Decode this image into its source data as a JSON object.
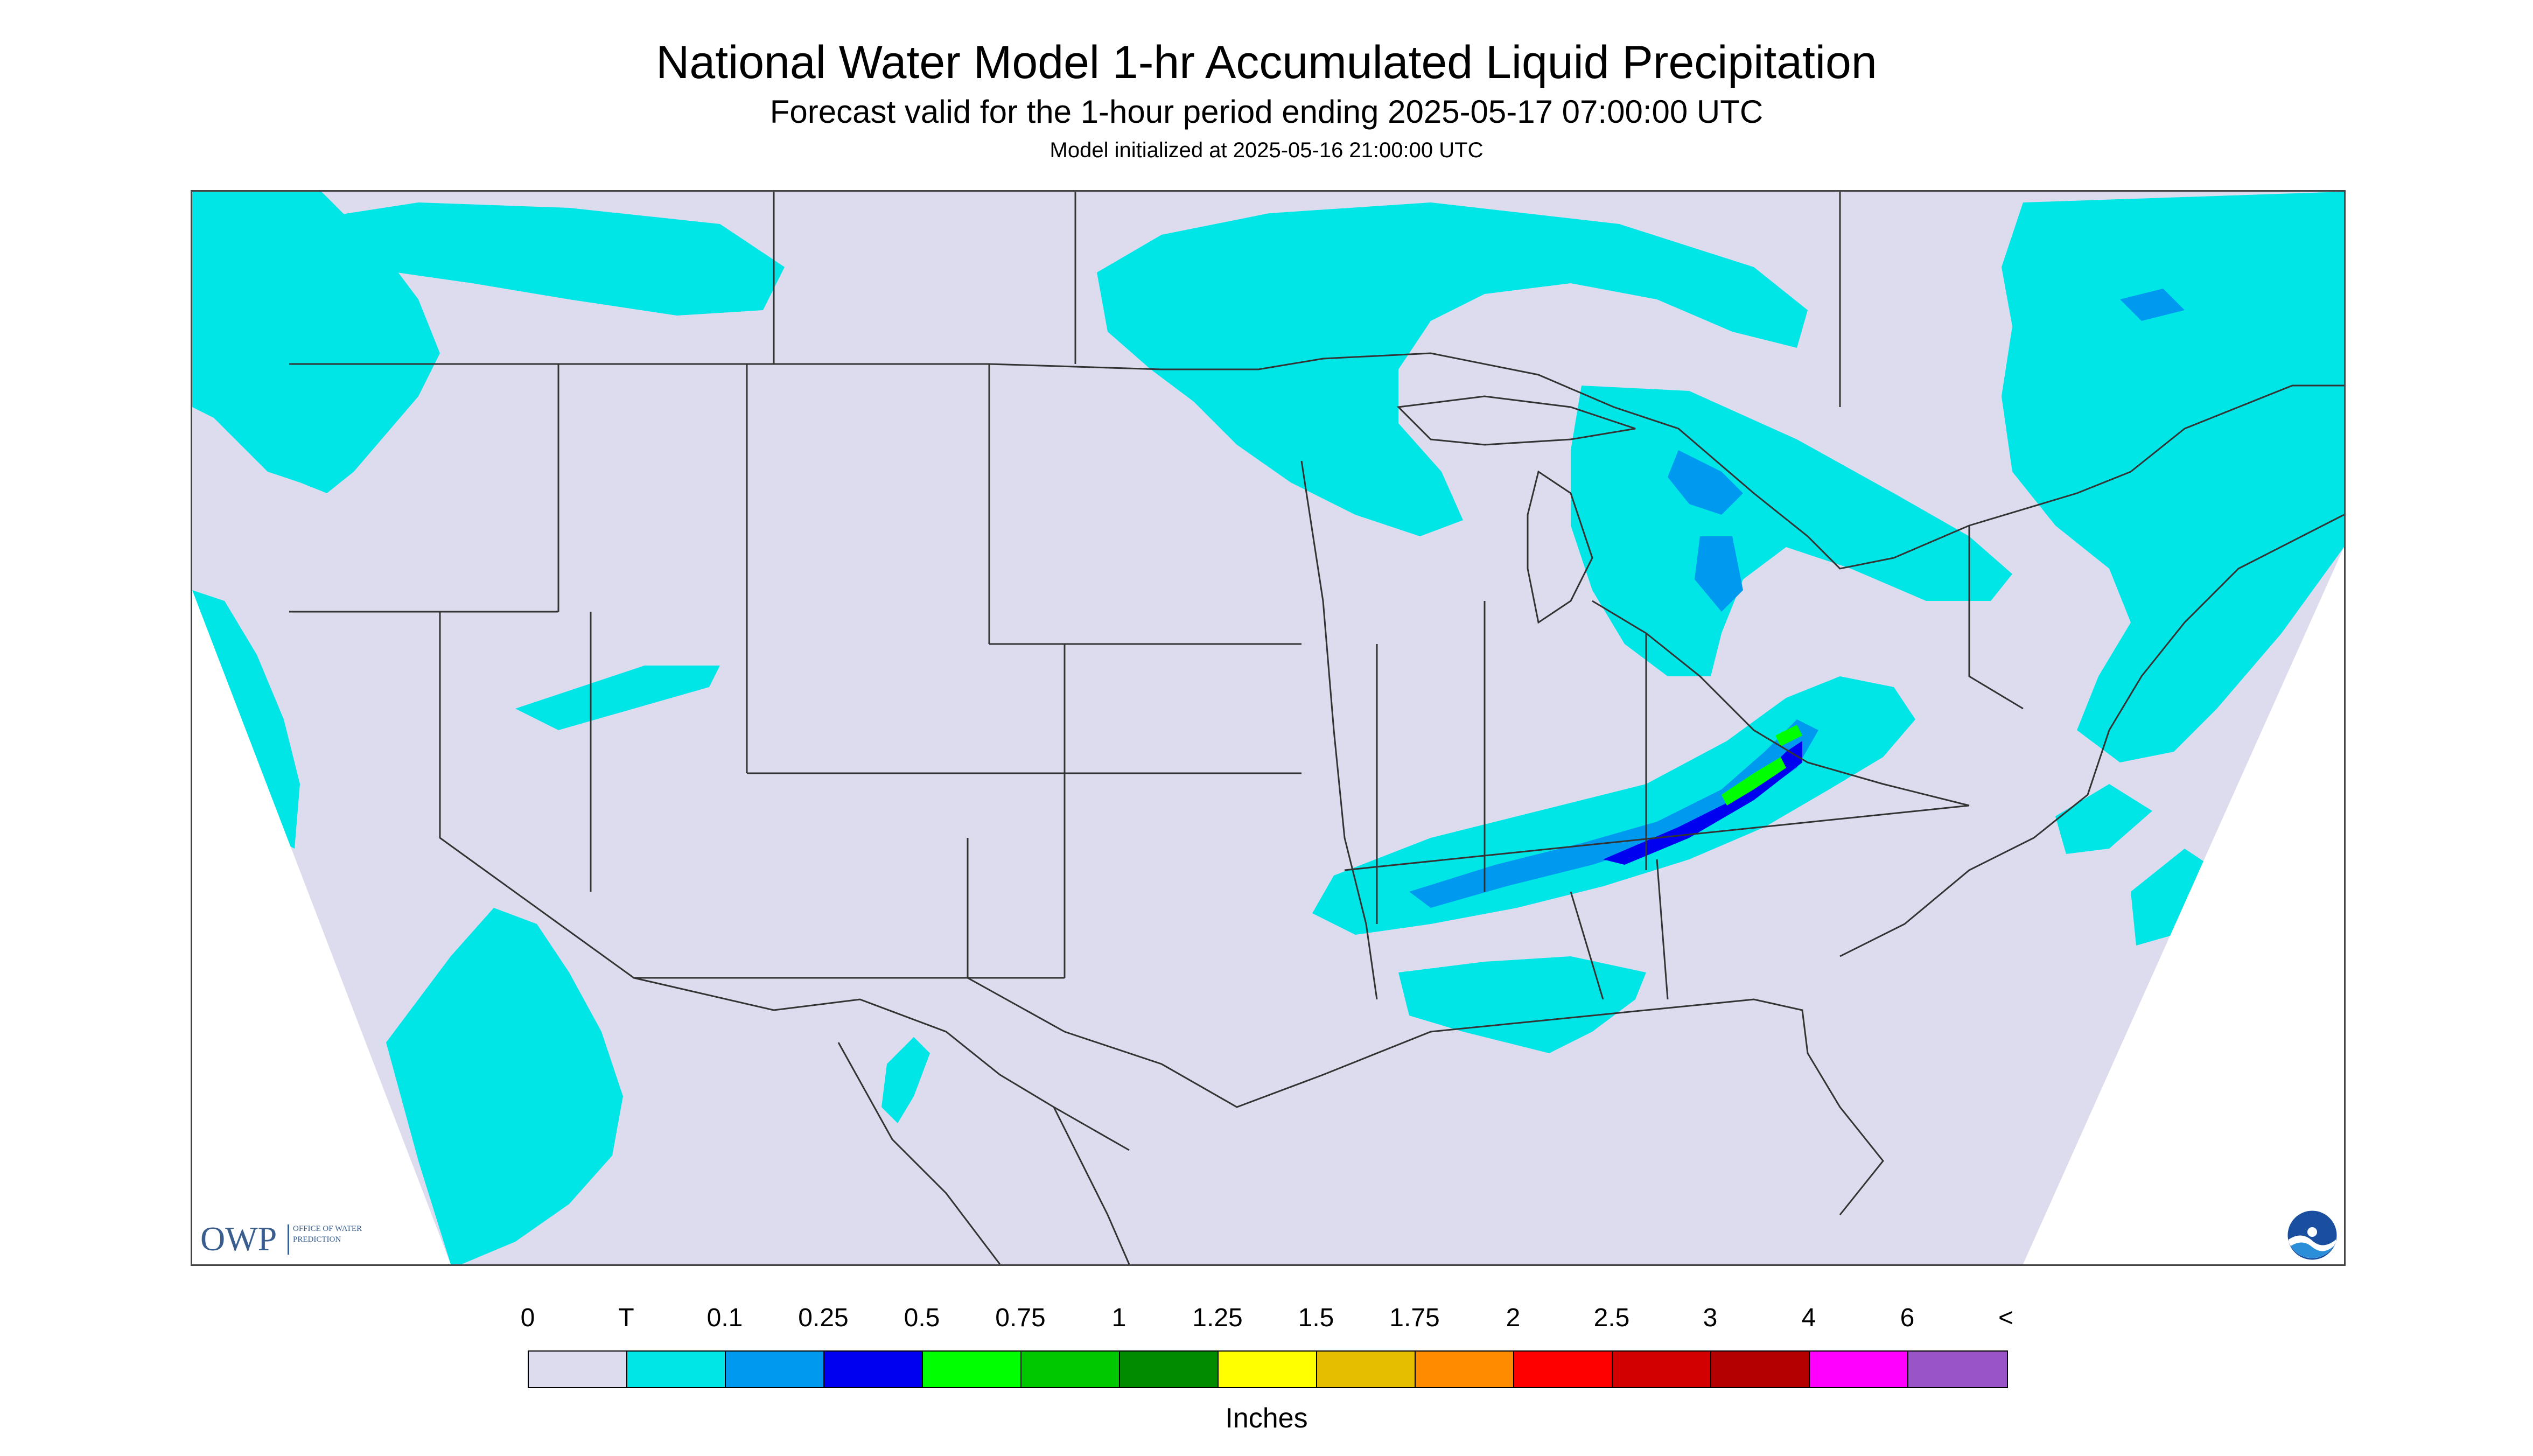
{
  "title": "National Water Model 1-hr Accumulated Liquid Precipitation",
  "subtitle": "Forecast valid for the 1-hour period ending 2025-05-17 07:00:00 UTC",
  "init_line": "Model initialized at 2025-05-16 21:00:00 UTC",
  "logos": {
    "owp_main": "OWP",
    "owp_sub": "OFFICE OF WATER PREDICTION",
    "noaa": "NOAA"
  },
  "map": {
    "background_color": "#dcdcee",
    "outside_color": "#ffffff",
    "border_color": "#444444"
  },
  "legend": {
    "units": "Inches",
    "labels": [
      "0",
      "T",
      "0.1",
      "0.25",
      "0.5",
      "0.75",
      "1",
      "1.25",
      "1.5",
      "1.75",
      "2",
      "2.5",
      "3",
      "4",
      "6",
      "<"
    ],
    "colors": [
      "#dcdcee",
      "#00e6e6",
      "#0099f0",
      "#0000f0",
      "#00ff00",
      "#00c800",
      "#008c00",
      "#ffff00",
      "#e6be00",
      "#ff8c00",
      "#ff0000",
      "#d20000",
      "#b40000",
      "#ff00ff",
      "#9955c8"
    ]
  }
}
